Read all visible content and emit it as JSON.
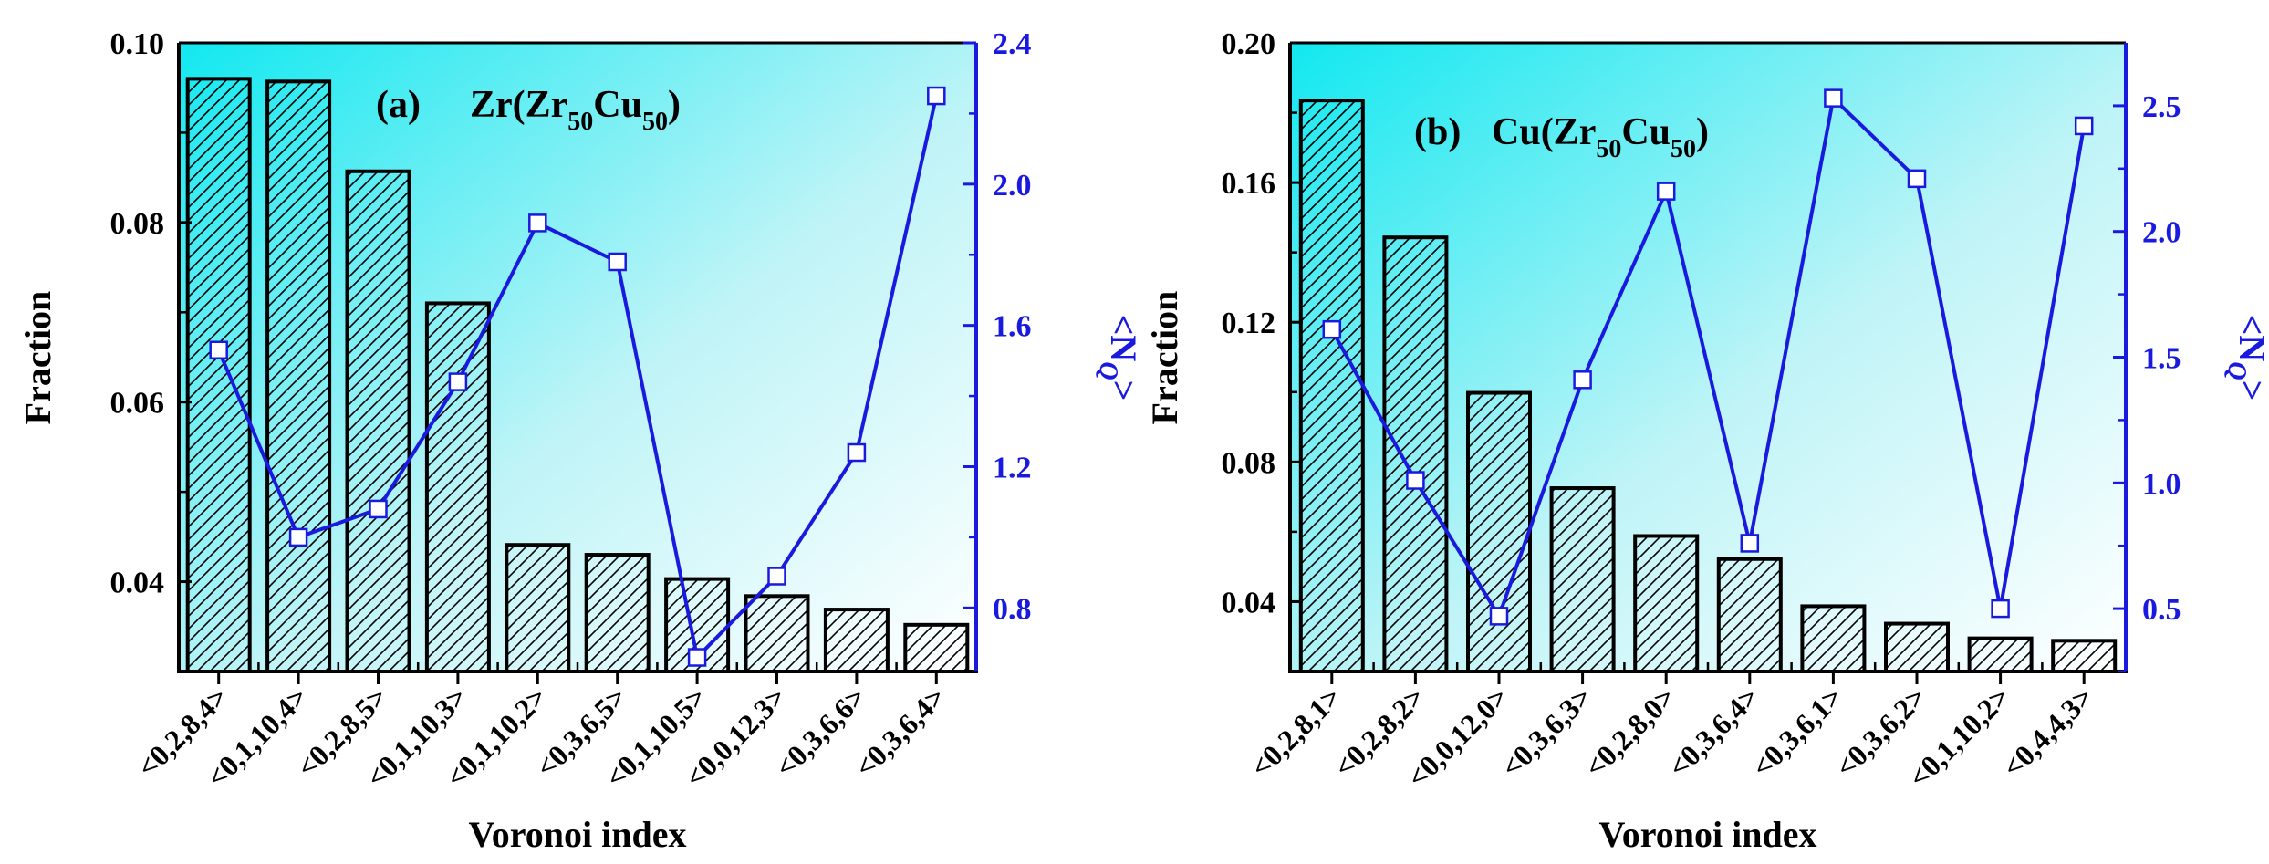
{
  "chart_data": [
    {
      "type": "bar",
      "panel_label": "(a)",
      "title_main": "Zr(Zr",
      "title_sub1": "50",
      "title_mid": "Cu",
      "title_sub2": "50",
      "title_end": ")",
      "xlabel": "Voronoi index",
      "ylabel": "Fraction",
      "y2label_pre": "<N",
      "y2label_q": "Q",
      "y2label_post": ">",
      "categories": [
        "<0,2,8,4>",
        "<0,1,10,4>",
        "<0,2,8,5>",
        "<0,1,10,3>",
        "<0,1,10,2>",
        "<0,3,6,5>",
        "<0,1,10,5>",
        "<0,0,12,3>",
        "<0,3,6,6>",
        "<0,3,6,4>"
      ],
      "values": [
        0.096,
        0.0957,
        0.0857,
        0.071,
        0.0441,
        0.043,
        0.0403,
        0.0384,
        0.0369,
        0.0352
      ],
      "ylim": [
        0.03,
        0.1
      ],
      "yticks": [
        0.04,
        0.06,
        0.08,
        0.1
      ],
      "ytick_labels": [
        "0.04",
        "0.06",
        "0.08",
        "0.10"
      ],
      "line_series": {
        "name": "<N_Q>",
        "values": [
          1.53,
          1.0,
          1.08,
          1.44,
          1.89,
          1.78,
          0.66,
          0.89,
          1.24,
          2.25
        ]
      },
      "y2lim": [
        0.62,
        2.4
      ],
      "y2ticks": [
        0.8,
        1.2,
        1.6,
        2.0,
        2.4
      ],
      "y2tick_labels": [
        "0.8",
        "1.2",
        "1.6",
        "2.0",
        "2.4"
      ],
      "colors": {
        "bar_edge": "#000000",
        "line": "#1a1adf",
        "axis2": "#1a1adf",
        "gradient_from": "#12e8f0",
        "gradient_to": "#ffffff"
      }
    },
    {
      "type": "bar",
      "panel_label": "(b)",
      "title_main": "Cu(Zr",
      "title_sub1": "50",
      "title_mid": "Cu",
      "title_sub2": "50",
      "title_end": ")",
      "xlabel": "Voronoi index",
      "ylabel": "Fraction",
      "y2label_pre": "<N",
      "y2label_q": "Q",
      "y2label_post": ">",
      "categories": [
        "<0,2,8,1>",
        "<0,2,8,2>",
        "<0,0,12,0>",
        "<0,3,6,3>",
        "<0,2,8,0>",
        "<0,3,6,4>",
        "<0,3,6,1>",
        "<0,3,6,2>",
        "<0,1,10,2>",
        "<0,4,4,3>"
      ],
      "values": [
        0.1835,
        0.1443,
        0.0998,
        0.0725,
        0.0588,
        0.0522,
        0.0387,
        0.0337,
        0.0295,
        0.0288
      ],
      "ylim": [
        0.02,
        0.2
      ],
      "yticks": [
        0.04,
        0.08,
        0.12,
        0.16,
        0.2
      ],
      "ytick_labels": [
        "0.04",
        "0.08",
        "0.12",
        "0.16",
        "0.20"
      ],
      "line_series": {
        "name": "<N_Q>",
        "values": [
          1.61,
          1.01,
          0.47,
          1.41,
          2.16,
          0.76,
          2.53,
          2.21,
          0.5,
          2.42
        ]
      },
      "y2lim": [
        0.25,
        2.75
      ],
      "y2ticks": [
        0.5,
        1.0,
        1.5,
        2.0,
        2.5
      ],
      "y2tick_labels": [
        "0.5",
        "1.0",
        "1.5",
        "2.0",
        "2.5"
      ],
      "colors": {
        "bar_edge": "#000000",
        "line": "#1a1adf",
        "axis2": "#1a1adf",
        "gradient_from": "#12e8f0",
        "gradient_to": "#ffffff"
      }
    }
  ]
}
